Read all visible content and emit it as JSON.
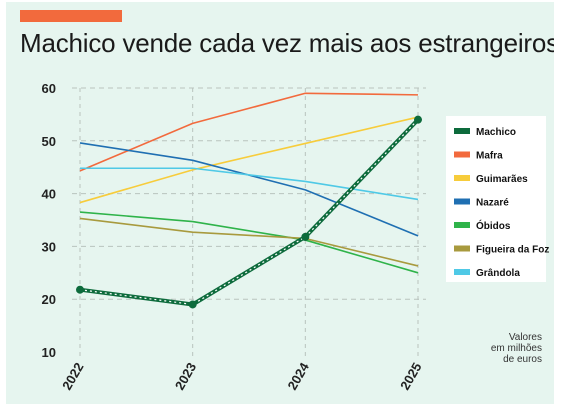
{
  "header": {
    "title": "Machico vende cada vez mais aos estrangeiros",
    "accent_color": "#f26a3d"
  },
  "unit_note": [
    "Valores",
    "em milhões",
    "de euros"
  ],
  "chart_data": {
    "type": "line",
    "title": "Machico vende cada vez mais aos estrangeiros",
    "x": [
      "2022",
      "2023",
      "2024",
      "2025"
    ],
    "ylim": [
      10,
      60
    ],
    "yticks": [
      10,
      20,
      30,
      40,
      50,
      60
    ],
    "grid": true,
    "legend_position": "right",
    "series": [
      {
        "name": "Machico",
        "color": "#0d6b3c",
        "values": [
          21.8,
          19.0,
          31.8,
          54.0
        ],
        "highlight": true
      },
      {
        "name": "Mafra",
        "color": "#f26a3d",
        "values": [
          44.3,
          53.3,
          59.0,
          58.7
        ]
      },
      {
        "name": "Guimarães",
        "color": "#f7cc3b",
        "values": [
          38.3,
          44.5,
          49.5,
          54.5
        ]
      },
      {
        "name": "Nazaré",
        "color": "#1f6fb2",
        "values": [
          49.6,
          46.3,
          40.7,
          32.0
        ]
      },
      {
        "name": "Óbidos",
        "color": "#2fb34a",
        "values": [
          36.5,
          34.7,
          31.2,
          25.0
        ]
      },
      {
        "name": "Figueira da Foz",
        "color": "#a89a3e",
        "values": [
          35.3,
          32.7,
          31.5,
          26.3
        ]
      },
      {
        "name": "Grândola",
        "color": "#4fc9e6",
        "values": [
          44.8,
          44.8,
          42.3,
          38.9
        ]
      }
    ]
  }
}
